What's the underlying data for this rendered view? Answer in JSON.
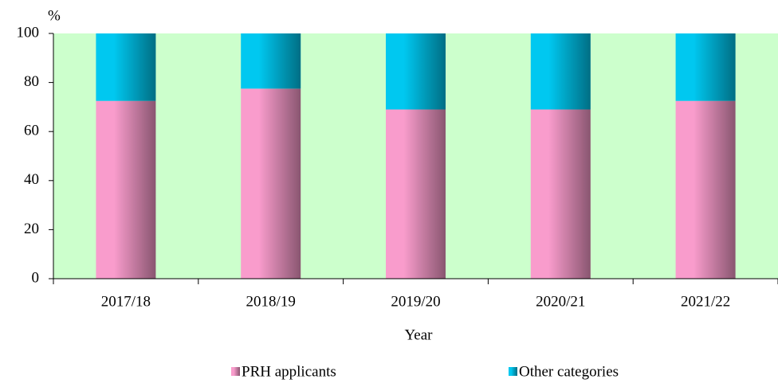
{
  "chart_data": {
    "type": "stacked_bar",
    "y_label": "%",
    "x_label": "Year",
    "categories": [
      "2017/18",
      "2018/19",
      "2019/20",
      "2020/21",
      "2021/22"
    ],
    "series": [
      {
        "name": "PRH applicants",
        "color": "#f99ccc",
        "values": [
          72.5,
          77.5,
          69,
          69,
          72.5
        ]
      },
      {
        "name": "Other categories",
        "color": "#00c8f0",
        "values": [
          27.5,
          22.5,
          31,
          31,
          27.5
        ]
      }
    ],
    "ylim": [
      0,
      100
    ],
    "yticks": [
      0,
      20,
      40,
      60,
      80,
      100
    ],
    "plot_background": "#ccffcc"
  }
}
